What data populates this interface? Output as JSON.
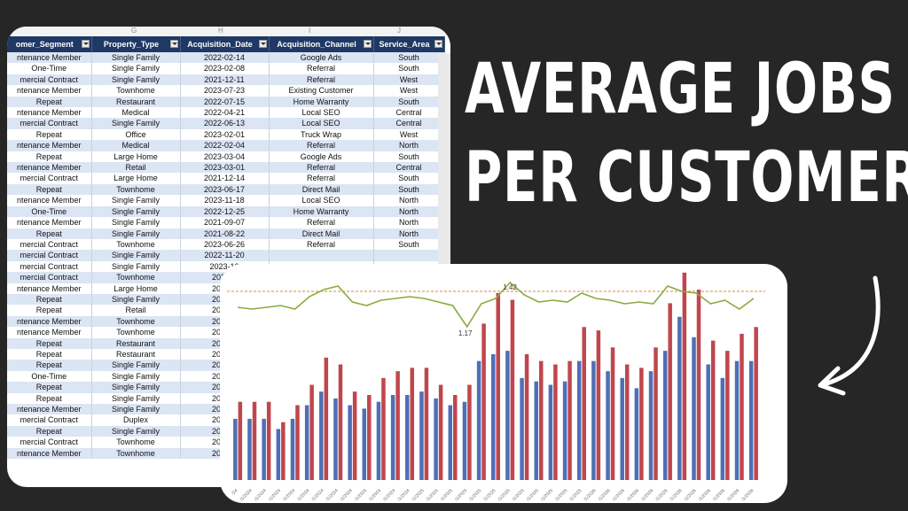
{
  "spreadsheet": {
    "column_letters": [
      "G",
      "H",
      "I",
      "J"
    ],
    "headers": [
      "omer_Segment",
      "Property_Type",
      "Acquisition_Date",
      "Acquisition_Channel",
      "Service_Area"
    ],
    "rows": [
      [
        "ntenance Member",
        "Single Family",
        "2022-02-14",
        "Google Ads",
        "South"
      ],
      [
        "One-Time",
        "Single Family",
        "2023-02-08",
        "Referral",
        "South"
      ],
      [
        "mercial Contract",
        "Single Family",
        "2021-12-11",
        "Referral",
        "West"
      ],
      [
        "ntenance Member",
        "Townhome",
        "2023-07-23",
        "Existing Customer",
        "West"
      ],
      [
        "Repeat",
        "Restaurant",
        "2022-07-15",
        "Home Warranty",
        "South"
      ],
      [
        "ntenance Member",
        "Medical",
        "2022-04-21",
        "Local SEO",
        "Central"
      ],
      [
        "mercial Contract",
        "Single Family",
        "2022-06-13",
        "Local SEO",
        "Central"
      ],
      [
        "Repeat",
        "Office",
        "2023-02-01",
        "Truck Wrap",
        "West"
      ],
      [
        "ntenance Member",
        "Medical",
        "2022-02-04",
        "Referral",
        "North"
      ],
      [
        "Repeat",
        "Large Home",
        "2023-03-04",
        "Google Ads",
        "South"
      ],
      [
        "ntenance Member",
        "Retail",
        "2023-03-01",
        "Referral",
        "Central"
      ],
      [
        "mercial Contract",
        "Large Home",
        "2021-12-14",
        "Referral",
        "South"
      ],
      [
        "Repeat",
        "Townhome",
        "2023-06-17",
        "Direct Mail",
        "South"
      ],
      [
        "ntenance Member",
        "Single Family",
        "2023-11-18",
        "Local SEO",
        "North"
      ],
      [
        "One-Time",
        "Single Family",
        "2022-12-25",
        "Home Warranty",
        "North"
      ],
      [
        "ntenance Member",
        "Single Family",
        "2021-09-07",
        "Referral",
        "North"
      ],
      [
        "Repeat",
        "Single Family",
        "2021-08-22",
        "Direct Mail",
        "North"
      ],
      [
        "mercial Contract",
        "Townhome",
        "2023-06-26",
        "Referral",
        "South"
      ],
      [
        "mercial Contract",
        "Single Family",
        "2022-11-20",
        "",
        ""
      ],
      [
        "mercial Contract",
        "Single Family",
        "2023-12",
        "",
        ""
      ],
      [
        "mercial Contract",
        "Townhome",
        "2023-1",
        "",
        ""
      ],
      [
        "ntenance Member",
        "Large Home",
        "2023-0",
        "",
        ""
      ],
      [
        "Repeat",
        "Single Family",
        "2021-0",
        "",
        ""
      ],
      [
        "Repeat",
        "Retail",
        "2022-0",
        "",
        ""
      ],
      [
        "ntenance Member",
        "Townhome",
        "2021-1",
        "",
        ""
      ],
      [
        "ntenance Member",
        "Townhome",
        "2023-0",
        "",
        ""
      ],
      [
        "Repeat",
        "Restaurant",
        "2023-0",
        "",
        ""
      ],
      [
        "Repeat",
        "Restaurant",
        "2022-0",
        "",
        ""
      ],
      [
        "Repeat",
        "Single Family",
        "2023-0",
        "",
        ""
      ],
      [
        "One-Time",
        "Single Family",
        "2023-0",
        "",
        ""
      ],
      [
        "Repeat",
        "Single Family",
        "2023-0",
        "",
        ""
      ],
      [
        "Repeat",
        "Single Family",
        "2022-0",
        "",
        ""
      ],
      [
        "ntenance Member",
        "Single Family",
        "2021-0",
        "",
        ""
      ],
      [
        "mercial Contract",
        "Duplex",
        "2023-0",
        "",
        ""
      ],
      [
        "Repeat",
        "Single Family",
        "2022-0",
        "",
        ""
      ],
      [
        "mercial Contract",
        "Townhome",
        "2023-0",
        "",
        ""
      ],
      [
        "ntenance Member",
        "Townhome",
        "2023-0",
        "",
        ""
      ]
    ]
  },
  "headline": {
    "line1": "AVERAGE JOBS",
    "line2": "PER CUSTOMER"
  },
  "chart_data": {
    "type": "bar",
    "series": [
      {
        "color": "#4f6fb5",
        "values": [
          18,
          18,
          18,
          15,
          18,
          22,
          26,
          24,
          22,
          21,
          23,
          25,
          25,
          26,
          24,
          22,
          23,
          35,
          37,
          38,
          30,
          29,
          28,
          29,
          35,
          35,
          32,
          30,
          27,
          32,
          38,
          48,
          42,
          34,
          30,
          35,
          35
        ]
      },
      {
        "color": "#c0464d",
        "values": [
          23,
          23,
          23,
          17,
          22,
          28,
          36,
          34,
          26,
          25,
          30,
          32,
          33,
          33,
          28,
          25,
          28,
          46,
          55,
          53,
          37,
          35,
          34,
          35,
          45,
          44,
          39,
          34,
          33,
          39,
          52,
          61,
          56,
          41,
          38,
          43,
          45
        ]
      },
      {
        "type": "line",
        "color": "#8aab3f",
        "values": [
          1.28,
          1.27,
          1.28,
          1.29,
          1.27,
          1.34,
          1.38,
          1.4,
          1.31,
          1.29,
          1.32,
          1.33,
          1.34,
          1.33,
          1.31,
          1.29,
          1.17,
          1.3,
          1.33,
          1.42,
          1.35,
          1.31,
          1.32,
          1.31,
          1.36,
          1.33,
          1.32,
          1.3,
          1.31,
          1.3,
          1.4,
          1.37,
          1.36,
          1.3,
          1.32,
          1.27,
          1.33
        ]
      }
    ],
    "reference_line": {
      "color": "#e08a2c",
      "style": "dashed",
      "value": 1.37
    },
    "data_labels": [
      "1.42",
      "1.17"
    ],
    "x_tick_labels": [
      "/24",
      "/1/2024",
      "/1/2024",
      "/1/2024",
      "/1/2024",
      "/1/2024",
      "/1/2024",
      "/1/2024",
      "/1/2024",
      "/1/2024",
      "/1/2024",
      "/1/2024",
      "/1/2024",
      "/1/2025",
      "/1/2025",
      "/1/2025",
      "/1/2025",
      "/1/2025",
      "/1/2025",
      "/1/2025",
      "/1/2025",
      "/1/2025",
      "/1/2025",
      "/1/2025",
      "/1/2025",
      "/1/2026",
      "/1/2026",
      "/1/2026",
      "/1/2026",
      "/1/2026",
      "/1/2026",
      "/1/2026",
      "/1/2026",
      "/1/2026",
      "/1/2026",
      "/1/2026",
      "/1/2026"
    ],
    "grid": false
  },
  "icons": [
    "curved-arrow-icon"
  ]
}
